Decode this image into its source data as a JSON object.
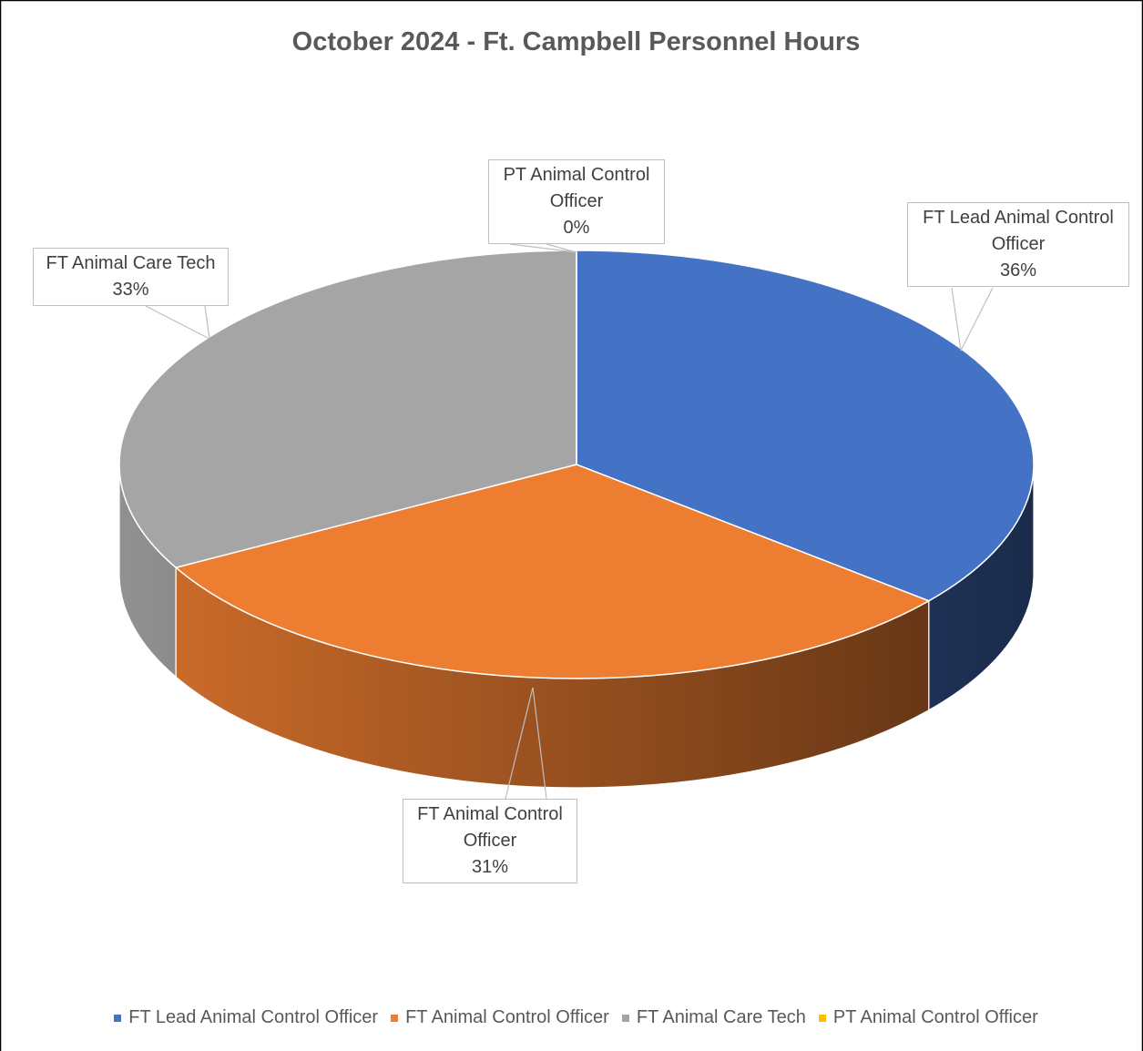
{
  "chart_data": {
    "type": "pie3d",
    "title": "October 2024 - Ft. Campbell Personnel Hours",
    "categories": [
      "FT Lead Animal Control Officer",
      "FT Animal Control Officer",
      "FT Animal Care Tech",
      "PT Animal Control Officer"
    ],
    "values": [
      36,
      31,
      33,
      0
    ],
    "value_labels": [
      "36%",
      "31%",
      "33%",
      "0%"
    ],
    "colors": [
      "#4472c4",
      "#ed7d31",
      "#a5a5a5",
      "#ffc000"
    ],
    "legend": "bottom"
  }
}
